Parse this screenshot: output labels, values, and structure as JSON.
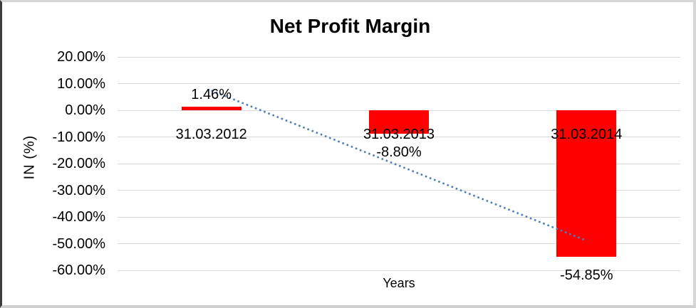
{
  "chart_data": {
    "type": "bar",
    "title": "Net Profit Margin",
    "xlabel": "Years",
    "ylabel": "IN (%)",
    "categories": [
      "31.03.2012",
      "31.03.2013",
      "31.03.2014"
    ],
    "values": [
      1.46,
      -8.8,
      -54.85
    ],
    "data_labels": [
      "1.46%",
      "-8.80%",
      "-54.85%"
    ],
    "bar_color": "#ff0000",
    "ylim": [
      -60,
      20
    ],
    "ytick_step": 10,
    "yticks": [
      {
        "value": 20,
        "label": "20.00%"
      },
      {
        "value": 10,
        "label": "10.00%"
      },
      {
        "value": 0,
        "label": "0.00%"
      },
      {
        "value": -10,
        "label": "-10.00%"
      },
      {
        "value": -20,
        "label": "-20.00%"
      },
      {
        "value": -30,
        "label": "-30.00%"
      },
      {
        "value": -40,
        "label": "-40.00%"
      },
      {
        "value": -50,
        "label": "-50.00%"
      },
      {
        "value": -60,
        "label": "-60.00%"
      }
    ],
    "grid": true,
    "gridline_color": "#d9d9d9",
    "legend": "none",
    "trendline": {
      "type": "linear",
      "style": "dotted",
      "color": "#4a7ebb",
      "start_category_index": 0,
      "end_category_index": 2,
      "start_value": 7.4,
      "end_value": -48.9
    }
  }
}
